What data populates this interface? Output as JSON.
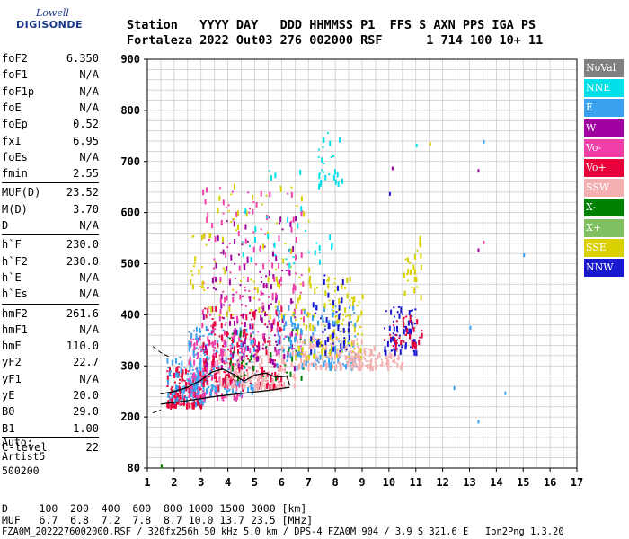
{
  "logo": {
    "line1": "Lowell",
    "line2": "DIGISONDE"
  },
  "header": {
    "labels": "Station   YYYY DAY   DDD HHMMSS P1  FFS S AXN PPS IGA PS",
    "values": "Fortaleza 2022 Out03 276 002000 RSF      1 714 100 10+ 11"
  },
  "params": [
    {
      "name": "foF2",
      "value": "6.350"
    },
    {
      "name": "foF1",
      "value": "N/A"
    },
    {
      "name": "foF1p",
      "value": "N/A"
    },
    {
      "name": "foE",
      "value": "N/A"
    },
    {
      "name": "foEp",
      "value": "0.52"
    },
    {
      "name": "fxI",
      "value": "6.95"
    },
    {
      "name": "foEs",
      "value": "N/A"
    },
    {
      "name": "fmin",
      "value": "2.55"
    },
    {
      "name": "MUF(D)",
      "value": "23.52"
    },
    {
      "name": "M(D)",
      "value": "3.70"
    },
    {
      "name": "D",
      "value": "N/A"
    },
    {
      "name": "h`F",
      "value": "230.0"
    },
    {
      "name": "h`F2",
      "value": "230.0"
    },
    {
      "name": "h`E",
      "value": "N/A"
    },
    {
      "name": "h`Es",
      "value": "N/A"
    },
    {
      "name": "hmF2",
      "value": "261.6"
    },
    {
      "name": "hmF1",
      "value": "N/A"
    },
    {
      "name": "hmE",
      "value": "110.0"
    },
    {
      "name": "yF2",
      "value": "22.7"
    },
    {
      "name": "yF1",
      "value": "N/A"
    },
    {
      "name": "yE",
      "value": "20.0"
    },
    {
      "name": "B0",
      "value": "29.0"
    },
    {
      "name": "B1",
      "value": "1.00"
    },
    {
      "name": "C-level",
      "value": "22"
    }
  ],
  "auto": {
    "line1": "Auto:",
    "line2": "Artist5",
    "line3": "500200"
  },
  "legend": [
    {
      "label": "NoVal",
      "color": "#808080"
    },
    {
      "label": "NNE",
      "color": "#00e0e8"
    },
    {
      "label": "E",
      "color": "#3aa0f0"
    },
    {
      "label": "W",
      "color": "#a000a0"
    },
    {
      "label": "Vo-",
      "color": "#f040a8"
    },
    {
      "label": "Vo+",
      "color": "#e8003a"
    },
    {
      "label": "SSW",
      "color": "#f4b0b0"
    },
    {
      "label": "X-",
      "color": "#008000"
    },
    {
      "label": "X+",
      "color": "#80c060"
    },
    {
      "label": "SSE",
      "color": "#d8d000"
    },
    {
      "label": "NNW",
      "color": "#1818d0"
    }
  ],
  "chart_data": {
    "type": "scatter",
    "x_ticks": [
      1,
      2,
      3,
      4,
      5,
      6,
      7,
      8,
      9,
      10,
      11,
      12,
      13,
      14,
      15,
      16,
      17
    ],
    "y_ticks": [
      80,
      200,
      300,
      400,
      500,
      600,
      700,
      800,
      900
    ],
    "xlim": [
      1,
      17
    ],
    "ylim": [
      80,
      900
    ],
    "grid": true,
    "profile_curve": [
      [
        1.5,
        245
      ],
      [
        2,
        250
      ],
      [
        2.5,
        258
      ],
      [
        3,
        272
      ],
      [
        3.4,
        288
      ],
      [
        3.8,
        294
      ],
      [
        4.2,
        284
      ],
      [
        4.6,
        270
      ],
      [
        5,
        282
      ],
      [
        5.4,
        286
      ],
      [
        5.8,
        278
      ],
      [
        6.2,
        280
      ],
      [
        6.3,
        262
      ]
    ],
    "lower_curve": [
      [
        1.5,
        225
      ],
      [
        2.5,
        232
      ],
      [
        3.5,
        240
      ],
      [
        4.5,
        246
      ],
      [
        5.5,
        252
      ],
      [
        6.3,
        258
      ]
    ],
    "dashed_upper": [
      [
        1.2,
        338
      ],
      [
        1.5,
        326
      ],
      [
        1.8,
        318
      ]
    ],
    "dashed_lower": [
      [
        1.2,
        208
      ],
      [
        1.5,
        214
      ]
    ],
    "echo_clusters": [
      {
        "x": [
          1.7,
          3.0
        ],
        "y": [
          225,
          300
        ],
        "color": "#e8003a",
        "n": 150
      },
      {
        "x": [
          1.7,
          3.2
        ],
        "y": [
          230,
          320
        ],
        "color": "#3aa0f0",
        "n": 90
      },
      {
        "x": [
          2.5,
          4.5
        ],
        "y": [
          240,
          360
        ],
        "color": "#f040a8",
        "n": 160
      },
      {
        "x": [
          2.5,
          5.0
        ],
        "y": [
          250,
          380
        ],
        "color": "#3aa0f0",
        "n": 160
      },
      {
        "x": [
          3.0,
          6.0
        ],
        "y": [
          260,
          420
        ],
        "color": "#e8003a",
        "n": 200
      },
      {
        "x": [
          3.5,
          6.5
        ],
        "y": [
          260,
          340
        ],
        "color": "#f4b0b0",
        "n": 160
      },
      {
        "x": [
          3.0,
          6.5
        ],
        "y": [
          300,
          600
        ],
        "color": "#a000a0",
        "n": 140
      },
      {
        "x": [
          3.0,
          6.8
        ],
        "y": [
          330,
          650
        ],
        "color": "#f040a8",
        "n": 160
      },
      {
        "x": [
          3.2,
          7.0
        ],
        "y": [
          400,
          660
        ],
        "color": "#d8d000",
        "n": 70
      },
      {
        "x": [
          4.0,
          7.0
        ],
        "y": [
          280,
          380
        ],
        "color": "#008000",
        "n": 40
      },
      {
        "x": [
          5.8,
          8.8
        ],
        "y": [
          300,
          420
        ],
        "color": "#3aa0f0",
        "n": 160
      },
      {
        "x": [
          6.5,
          9.0
        ],
        "y": [
          320,
          480
        ],
        "color": "#d8d000",
        "n": 130
      },
      {
        "x": [
          6.5,
          9.0
        ],
        "y": [
          300,
          360
        ],
        "color": "#f4b0b0",
        "n": 110
      },
      {
        "x": [
          7.0,
          8.5
        ],
        "y": [
          330,
          480
        ],
        "color": "#1818d0",
        "n": 50
      },
      {
        "x": [
          8.5,
          10.5
        ],
        "y": [
          300,
          340
        ],
        "color": "#f4b0b0",
        "n": 90
      },
      {
        "x": [
          9.8,
          11.0
        ],
        "y": [
          330,
          420
        ],
        "color": "#1818d0",
        "n": 80
      },
      {
        "x": [
          9.8,
          11.2
        ],
        "y": [
          340,
          400
        ],
        "color": "#e8003a",
        "n": 40
      },
      {
        "x": [
          10.5,
          11.2
        ],
        "y": [
          430,
          560
        ],
        "color": "#d8d000",
        "n": 25
      },
      {
        "x": [
          7.3,
          8.3
        ],
        "y": [
          660,
          780
        ],
        "color": "#00e0e8",
        "n": 25
      },
      {
        "x": [
          4.5,
          8.0
        ],
        "y": [
          500,
          700
        ],
        "color": "#00e0e8",
        "n": 35
      },
      {
        "x": [
          2.5,
          3.2
        ],
        "y": [
          450,
          560
        ],
        "color": "#d8d000",
        "n": 20
      }
    ],
    "isolated_points": [
      {
        "x": 10.0,
        "y": 640,
        "color": "#1818d0"
      },
      {
        "x": 10.1,
        "y": 690,
        "color": "#a000a0"
      },
      {
        "x": 11.0,
        "y": 735,
        "color": "#00e0e8"
      },
      {
        "x": 11.5,
        "y": 738,
        "color": "#d8d000"
      },
      {
        "x": 13.3,
        "y": 685,
        "color": "#a000a0"
      },
      {
        "x": 13.5,
        "y": 742,
        "color": "#3aa0f0"
      },
      {
        "x": 13.3,
        "y": 530,
        "color": "#a000a0"
      },
      {
        "x": 13.5,
        "y": 545,
        "color": "#f040a8"
      },
      {
        "x": 15.0,
        "y": 520,
        "color": "#3aa0f0"
      },
      {
        "x": 13.0,
        "y": 378,
        "color": "#3aa0f0"
      },
      {
        "x": 13.3,
        "y": 193,
        "color": "#3aa0f0"
      },
      {
        "x": 1.5,
        "y": 88,
        "color": "#008000"
      },
      {
        "x": 12.4,
        "y": 260,
        "color": "#3aa0f0"
      },
      {
        "x": 14.3,
        "y": 250,
        "color": "#3aa0f0"
      }
    ]
  },
  "footer": {
    "line1": "D     100  200  400  600  800 1000 1500 3000 [km]",
    "line2": "MUF   6.7  6.8  7.2  7.8  8.7 10.0 13.7 23.5 [MHz]",
    "line3": "FZA0M_2022276002000.RSF / 320fx256h 50 kHz 5.0 km / DPS-4 FZA0M 904 / 3.9 S 321.6 E   Ion2Png 1.3.20"
  }
}
